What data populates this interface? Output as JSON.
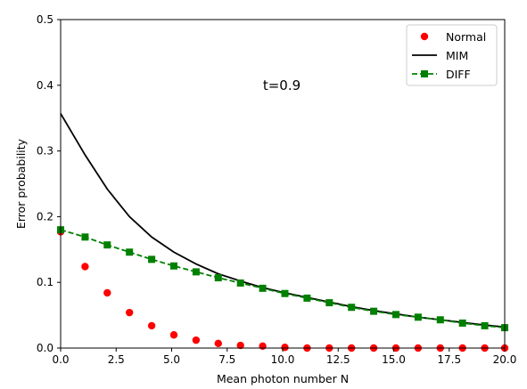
{
  "chart_data": {
    "type": "line",
    "annotation": "t=0.9",
    "xlabel": "Mean photon number N",
    "ylabel": "Error probability",
    "xlim": [
      0,
      20
    ],
    "ylim": [
      0,
      0.5
    ],
    "xticks": [
      0,
      2.5,
      5,
      7.5,
      10,
      12.5,
      15,
      17.5,
      20
    ],
    "xtick_labels": [
      "0.0",
      "2.5",
      "5.0",
      "7.5",
      "10.0",
      "12.5",
      "15.0",
      "17.5",
      "20.0"
    ],
    "yticks": [
      0,
      0.1,
      0.2,
      0.3,
      0.4,
      0.5
    ],
    "ytick_labels": [
      "0.0",
      "0.1",
      "0.2",
      "0.3",
      "0.4",
      "0.5"
    ],
    "grid": false,
    "legend_position": "top-right",
    "series": [
      {
        "name": "Normal",
        "color": "#ff0000",
        "marker": "circle",
        "line": "none",
        "x": [
          0,
          1.1,
          2.1,
          3.1,
          4.1,
          5.1,
          6.1,
          7.1,
          8.1,
          9.1,
          10.1,
          11.1,
          12.1,
          13.1,
          14.1,
          15.1,
          16.1,
          17.1,
          18.1,
          19.1,
          20.0
        ],
        "y": [
          0.177,
          0.124,
          0.084,
          0.054,
          0.034,
          0.02,
          0.012,
          0.007,
          0.004,
          0.003,
          0.001,
          0.0,
          0.0,
          0.0,
          0.0,
          0.0,
          0.0,
          0.0,
          0.0,
          0.0,
          0.0
        ]
      },
      {
        "name": "MIM",
        "color": "#000000",
        "marker": "none",
        "line": "solid",
        "x": [
          0,
          1.1,
          2.1,
          3.1,
          4.1,
          5.1,
          6.1,
          7.1,
          8.1,
          9.1,
          10.1,
          11.1,
          12.1,
          13.1,
          14.1,
          15.1,
          16.1,
          17.1,
          18.1,
          19.1,
          20.0
        ],
        "y": [
          0.357,
          0.294,
          0.242,
          0.2,
          0.169,
          0.146,
          0.128,
          0.113,
          0.102,
          0.092,
          0.084,
          0.077,
          0.07,
          0.063,
          0.057,
          0.052,
          0.047,
          0.043,
          0.039,
          0.035,
          0.032
        ]
      },
      {
        "name": "DIFF",
        "color": "#008000",
        "marker": "square",
        "line": "dashed",
        "x": [
          0,
          1.1,
          2.1,
          3.1,
          4.1,
          5.1,
          6.1,
          7.1,
          8.1,
          9.1,
          10.1,
          11.1,
          12.1,
          13.1,
          14.1,
          15.1,
          16.1,
          17.1,
          18.1,
          19.1,
          20.0
        ],
        "y": [
          0.18,
          0.169,
          0.157,
          0.146,
          0.135,
          0.125,
          0.116,
          0.107,
          0.099,
          0.091,
          0.083,
          0.076,
          0.069,
          0.062,
          0.056,
          0.051,
          0.047,
          0.043,
          0.038,
          0.034,
          0.031
        ]
      }
    ]
  }
}
